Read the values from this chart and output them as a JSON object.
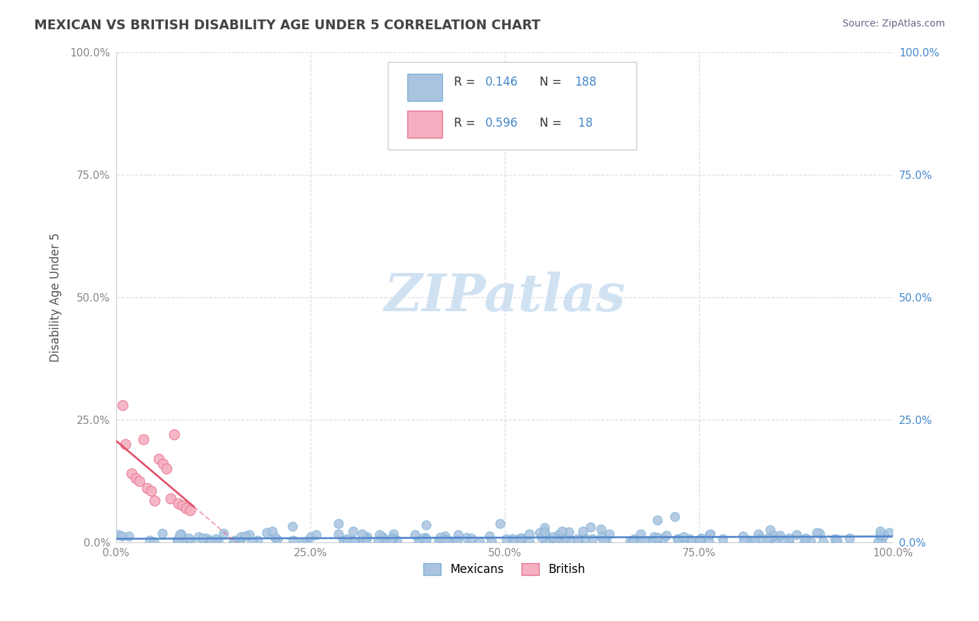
{
  "title": "MEXICAN VS BRITISH DISABILITY AGE UNDER 5 CORRELATION CHART",
  "source": "Source: ZipAtlas.com",
  "ylabel_label": "Disability Age Under 5",
  "x_tick_labels": [
    "0.0%",
    "25.0%",
    "50.0%",
    "75.0%",
    "100.0%"
  ],
  "y_tick_labels_left": [
    "0.0%",
    "25.0%",
    "50.0%",
    "75.0%",
    "100.0%"
  ],
  "y_tick_labels_right": [
    "0.0%",
    "25.0%",
    "50.0%",
    "75.0%",
    "100.0%"
  ],
  "x_ticks": [
    0,
    25,
    50,
    75,
    100
  ],
  "y_ticks": [
    0,
    25,
    50,
    75,
    100
  ],
  "xlim": [
    0,
    100
  ],
  "ylim": [
    0,
    100
  ],
  "mexican_color": "#aac4e0",
  "british_color": "#f4b0c0",
  "mexican_edge": "#7aafd4",
  "british_edge": "#e87090",
  "regression_mexican_color": "#5588cc",
  "regression_british_color": "#e0506a",
  "regression_mexican_dashed_color": "#e8b0c0",
  "watermark_color": "#c8ddf0",
  "title_color": "#444444",
  "axis_label_color": "#555555",
  "tick_color_x": "#888888",
  "tick_color_y_left": "#888888",
  "tick_color_y_right": "#4488cc",
  "grid_color": "#d8dde8",
  "source_color": "#666688",
  "legend_R_color": "#333333",
  "legend_N_color": "#4488cc",
  "mexican_R": 0.146,
  "mexican_N": 188,
  "british_R": 0.596,
  "british_N": 18,
  "british_x": [
    0.8,
    1.2,
    2.0,
    2.5,
    3.0,
    3.5,
    4.0,
    4.5,
    5.0,
    5.5,
    6.0,
    6.5,
    7.0,
    7.5,
    8.0,
    8.5,
    9.0,
    9.5
  ],
  "british_y": [
    28.0,
    20.0,
    14.0,
    13.0,
    12.5,
    21.0,
    11.0,
    10.5,
    8.5,
    17.0,
    16.0,
    15.0,
    9.0,
    22.0,
    8.0,
    7.5,
    7.0,
    6.5
  ]
}
